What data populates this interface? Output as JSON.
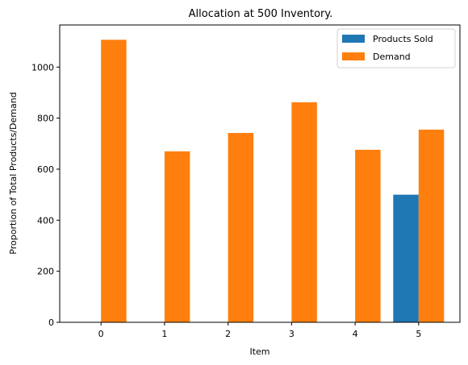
{
  "chart_data": {
    "type": "bar",
    "title": "Allocation at 500 Inventory.",
    "xlabel": "Item",
    "ylabel": "Proportion of Total Products/Demand",
    "categories": [
      "0",
      "1",
      "2",
      "3",
      "4",
      "5"
    ],
    "ylim": [
      0,
      1165
    ],
    "yticks": [
      0,
      200,
      400,
      600,
      800,
      1000
    ],
    "grid": false,
    "legend_position": "top-right",
    "series": [
      {
        "name": "Products Sold",
        "color": "#1f77b4",
        "values": [
          0,
          0,
          0,
          0,
          0,
          500
        ]
      },
      {
        "name": "Demand",
        "color": "#ff7f0e",
        "values": [
          1107,
          670,
          742,
          862,
          676,
          755
        ]
      }
    ]
  }
}
